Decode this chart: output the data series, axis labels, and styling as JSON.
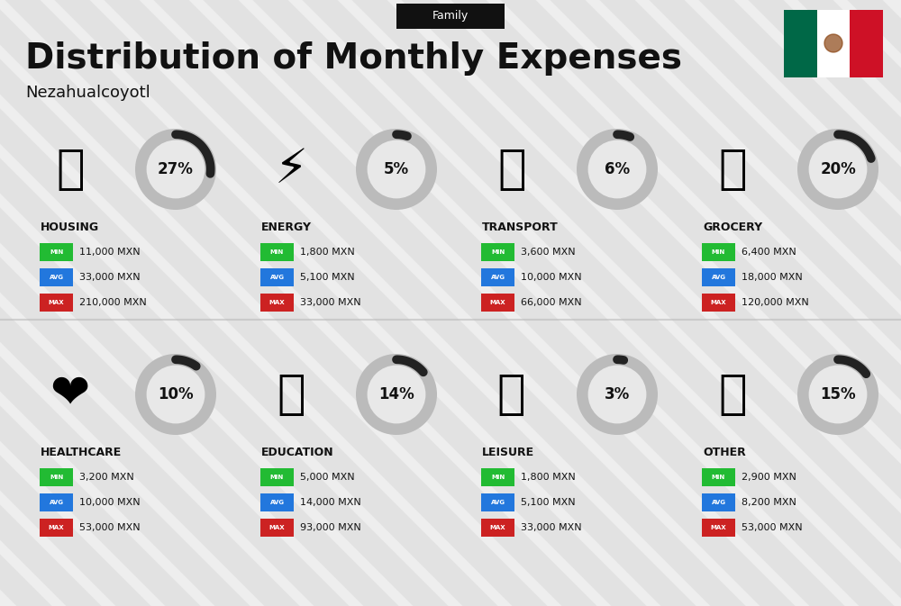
{
  "title": "Distribution of Monthly Expenses",
  "subtitle": "Nezahualcoyotl",
  "tag": "Family",
  "background_color": "#eeeeee",
  "categories": [
    {
      "name": "HOUSING",
      "percent": 27,
      "min": "11,000 MXN",
      "avg": "33,000 MXN",
      "max": "210,000 MXN",
      "row": 0,
      "col": 0
    },
    {
      "name": "ENERGY",
      "percent": 5,
      "min": "1,800 MXN",
      "avg": "5,100 MXN",
      "max": "33,000 MXN",
      "row": 0,
      "col": 1
    },
    {
      "name": "TRANSPORT",
      "percent": 6,
      "min": "3,600 MXN",
      "avg": "10,000 MXN",
      "max": "66,000 MXN",
      "row": 0,
      "col": 2
    },
    {
      "name": "GROCERY",
      "percent": 20,
      "min": "6,400 MXN",
      "avg": "18,000 MXN",
      "max": "120,000 MXN",
      "row": 0,
      "col": 3
    },
    {
      "name": "HEALTHCARE",
      "percent": 10,
      "min": "3,200 MXN",
      "avg": "10,000 MXN",
      "max": "53,000 MXN",
      "row": 1,
      "col": 0
    },
    {
      "name": "EDUCATION",
      "percent": 14,
      "min": "5,000 MXN",
      "avg": "14,000 MXN",
      "max": "93,000 MXN",
      "row": 1,
      "col": 1
    },
    {
      "name": "LEISURE",
      "percent": 3,
      "min": "1,800 MXN",
      "avg": "5,100 MXN",
      "max": "33,000 MXN",
      "row": 1,
      "col": 2
    },
    {
      "name": "OTHER",
      "percent": 15,
      "min": "2,900 MXN",
      "avg": "8,200 MXN",
      "max": "53,000 MXN",
      "row": 1,
      "col": 3
    }
  ],
  "min_color": "#22bb33",
  "avg_color": "#2277dd",
  "max_color": "#cc2222",
  "text_color": "#111111",
  "circle_gray": "#bbbbbb",
  "circle_inner": "#e8e8e8",
  "arc_color": "#222222",
  "tag_bg": "#111111",
  "tag_fg": "#ffffff",
  "stripe_color": "#d8d8d8",
  "flag_green": "#006847",
  "flag_white": "#ffffff",
  "flag_red": "#ce1126",
  "title_fontsize": 28,
  "subtitle_fontsize": 13,
  "tag_fontsize": 9,
  "cat_name_fontsize": 9,
  "pct_fontsize": 12,
  "val_fontsize": 8,
  "badge_fontsize": 5
}
